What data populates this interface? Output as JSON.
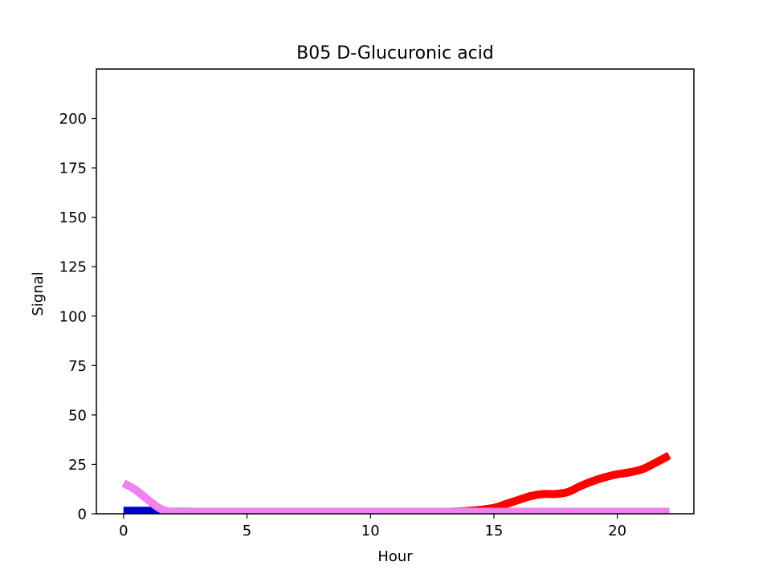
{
  "chart_data": {
    "type": "line",
    "title": "B05 D-Glucuronic acid",
    "xlabel": "Hour",
    "ylabel": "Signal",
    "xlim": [
      -1.1,
      23.1
    ],
    "ylim": [
      0,
      225
    ],
    "xticks": [
      0,
      5,
      10,
      15,
      20
    ],
    "yticks": [
      0,
      25,
      50,
      75,
      100,
      125,
      150,
      175,
      200
    ],
    "grid": false,
    "series": [
      {
        "color": "#ff0000",
        "x": [
          0,
          1,
          2,
          3,
          4,
          5,
          6,
          7,
          8,
          9,
          10,
          11,
          12,
          13,
          14,
          15,
          15.5,
          16,
          16.5,
          17,
          17.5,
          18,
          18.5,
          19,
          19.5,
          20,
          20.5,
          21,
          21.5,
          22.1
        ],
        "y": [
          1,
          1,
          1,
          1,
          1,
          1,
          1,
          1,
          1,
          1,
          1,
          1,
          1,
          1,
          1.5,
          3,
          5,
          7,
          9,
          10,
          10,
          11,
          14,
          16.5,
          18.5,
          20,
          21,
          22.5,
          25.5,
          29.5
        ]
      },
      {
        "color": "#0000cd",
        "x": [
          0,
          0.5,
          1,
          1.2,
          1.5,
          2,
          3,
          4,
          5,
          6,
          7,
          8,
          9,
          10,
          11,
          12,
          13,
          14,
          15,
          16,
          17,
          18,
          19,
          20,
          21,
          22.1
        ],
        "y": [
          1.5,
          1.5,
          1.5,
          1.5,
          1,
          1,
          1,
          1,
          1,
          1,
          1,
          1,
          1,
          1,
          1,
          1,
          1,
          1,
          1,
          1,
          1,
          1,
          1,
          1,
          1,
          1
        ]
      },
      {
        "color": "#ee82ee",
        "x": [
          0,
          0.5,
          1,
          1.5,
          2,
          3,
          4,
          5,
          6,
          7,
          8,
          9,
          10,
          11,
          12,
          13,
          14,
          15,
          16,
          17,
          18,
          19,
          20,
          21,
          22.1
        ],
        "y": [
          15.5,
          12,
          7,
          2.5,
          1,
          1,
          1,
          1,
          1,
          1,
          1,
          1,
          1,
          1,
          1,
          1,
          1,
          1,
          1,
          1,
          1,
          1,
          1,
          1,
          1
        ]
      }
    ]
  }
}
